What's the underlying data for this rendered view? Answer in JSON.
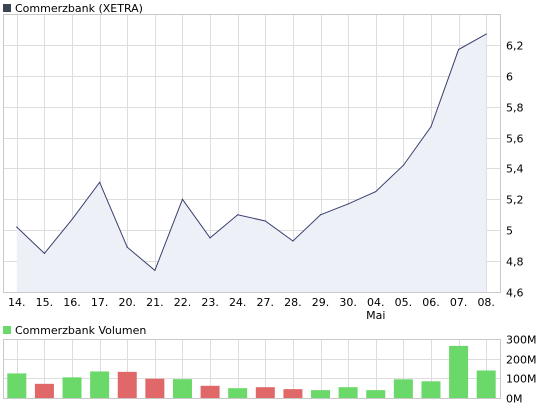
{
  "colors": {
    "price_line": "#3a3f6e",
    "price_area": "#eef0f8",
    "price_legend_swatch": "#3c4354",
    "volume_up": "#6ad96a",
    "volume_down": "#e06868",
    "volume_legend_swatch": "#6ad96a",
    "grid": "#dddddd"
  },
  "chart_data": [
    {
      "type": "area",
      "legend": "Commerzbank (XETRA)",
      "categories": [
        "14.",
        "15.",
        "16.",
        "17.",
        "20.",
        "21.",
        "22.",
        "23.",
        "24.",
        "27.",
        "28.",
        "29.",
        "30.",
        "04.",
        "05.",
        "06.",
        "07.",
        "08."
      ],
      "month_label": "Mai",
      "series": [
        {
          "values": [
            5.02,
            4.85,
            5.07,
            5.31,
            4.89,
            4.74,
            5.2,
            4.95,
            5.1,
            5.06,
            4.93,
            5.1,
            5.17,
            5.25,
            5.42,
            5.67,
            6.17,
            6.27
          ]
        }
      ],
      "ylim": [
        4.6,
        6.4
      ],
      "yticks": [
        4.6,
        4.8,
        5,
        5.2,
        5.4,
        5.6,
        5.8,
        6,
        6.2
      ],
      "ytick_labels": [
        "4,6",
        "4,8",
        "5",
        "5,2",
        "5,4",
        "5,6",
        "5,8",
        "6",
        "6,2"
      ],
      "grid": true
    },
    {
      "type": "bar",
      "legend": "Commerzbank Volumen",
      "categories": [
        "14.",
        "15.",
        "16.",
        "17.",
        "20.",
        "21.",
        "22.",
        "23.",
        "24.",
        "27.",
        "28.",
        "29.",
        "30.",
        "04.",
        "05.",
        "06.",
        "07.",
        "08."
      ],
      "series": [
        {
          "values": [
            125,
            72,
            105,
            135,
            133,
            98,
            96,
            62,
            50,
            55,
            45,
            40,
            55,
            40,
            95,
            85,
            265,
            140
          ],
          "direction": [
            "up",
            "down",
            "up",
            "up",
            "down",
            "down",
            "up",
            "down",
            "up",
            "down",
            "down",
            "up",
            "up",
            "up",
            "up",
            "up",
            "up",
            "up"
          ]
        }
      ],
      "ylim": [
        0,
        300
      ],
      "yticks": [
        0,
        100,
        200,
        300
      ],
      "ytick_labels": [
        "0M",
        "100M",
        "200M",
        "300M"
      ],
      "grid": true
    }
  ]
}
